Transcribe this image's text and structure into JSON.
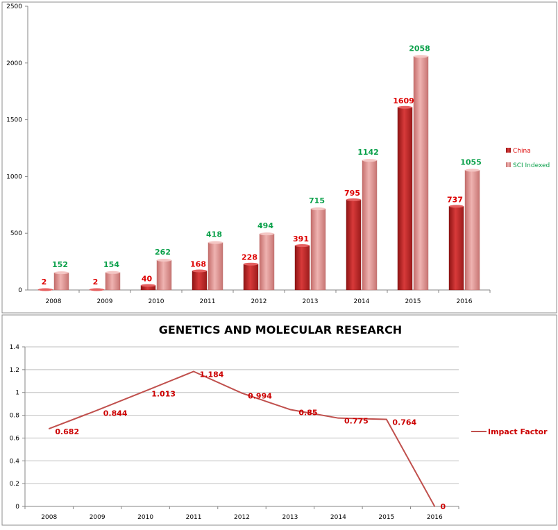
{
  "colors": {
    "china": "#c0292b",
    "sci": "#d98886",
    "china_label": "#dd0000",
    "sci_label": "#0aa04a",
    "line": "#c0504d",
    "impact_label": "#cc0000",
    "grid": "#bfbfbf",
    "axis_text": "#000000"
  },
  "chart_data": [
    {
      "type": "bar",
      "title": "",
      "categories": [
        "2008",
        "2009",
        "2010",
        "2011",
        "2012",
        "2013",
        "2014",
        "2015",
        "2016"
      ],
      "series": [
        {
          "name": "China",
          "values": [
            2,
            2,
            40,
            168,
            228,
            391,
            795,
            1609,
            737
          ]
        },
        {
          "name": "SCI Indexed",
          "values": [
            152,
            154,
            262,
            418,
            494,
            715,
            1142,
            2058,
            1055
          ]
        }
      ],
      "yticks": [
        "0",
        "500",
        "1000",
        "1500",
        "2000",
        "2500"
      ],
      "ylim": [
        0,
        2500
      ],
      "grid": false,
      "legend": "right"
    },
    {
      "type": "line",
      "title": "GENETICS AND MOLECULAR RESEARCH",
      "categories": [
        "2008",
        "2009",
        "2010",
        "2011",
        "2012",
        "2013",
        "2014",
        "2015",
        "2016"
      ],
      "series": [
        {
          "name": "Impact Factor",
          "values": [
            0.682,
            0.844,
            1.013,
            1.184,
            0.994,
            0.85,
            0.775,
            0.764,
            0
          ]
        }
      ],
      "labels": [
        "0.682",
        "0.844",
        "1.013",
        "1.184",
        "0.994",
        "0.85",
        "0.775",
        "0.764",
        "0"
      ],
      "yticks": [
        "0",
        "0.2",
        "0.4",
        "0.6",
        "0.8",
        "1",
        "1.2",
        "1.4"
      ],
      "ylim": [
        0,
        1.4
      ],
      "grid": true,
      "legend": "right"
    }
  ]
}
